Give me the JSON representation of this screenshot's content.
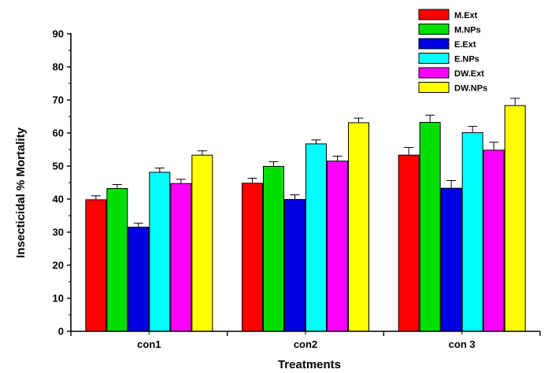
{
  "chart_data": {
    "type": "bar",
    "title": "",
    "xlabel": "Treatments",
    "ylabel": "Insecticidal % Mortality",
    "ylim": [
      0,
      90
    ],
    "yticks": [
      0,
      10,
      20,
      30,
      40,
      50,
      60,
      70,
      80,
      90
    ],
    "categories": [
      "con1",
      "con2",
      "con 3"
    ],
    "error_bars": true,
    "grid": false,
    "legend_position": "top-right",
    "series": [
      {
        "name": "M.Ext",
        "color": "#ff0000",
        "values": [
          39.8,
          44.8,
          53.3
        ],
        "errors": [
          1.2,
          1.5,
          2.3
        ]
      },
      {
        "name": "M.NPs",
        "color": "#00e000",
        "values": [
          43.2,
          49.9,
          63.2
        ],
        "errors": [
          1.2,
          1.4,
          2.2
        ]
      },
      {
        "name": "E.Ext",
        "color": "#0000e0",
        "values": [
          31.5,
          39.9,
          43.3
        ],
        "errors": [
          1.2,
          1.4,
          2.3
        ]
      },
      {
        "name": "E.NPs",
        "color": "#00ffff",
        "values": [
          48.1,
          56.7,
          60.1
        ],
        "errors": [
          1.3,
          1.2,
          1.9
        ]
      },
      {
        "name": "DW.Ext",
        "color": "#ff00ff",
        "values": [
          44.7,
          51.5,
          54.8
        ],
        "errors": [
          1.3,
          1.5,
          2.4
        ]
      },
      {
        "name": "DW.NPs",
        "color": "#ffff00",
        "values": [
          53.3,
          63.1,
          68.3
        ],
        "errors": [
          1.3,
          1.4,
          2.2
        ]
      }
    ]
  }
}
